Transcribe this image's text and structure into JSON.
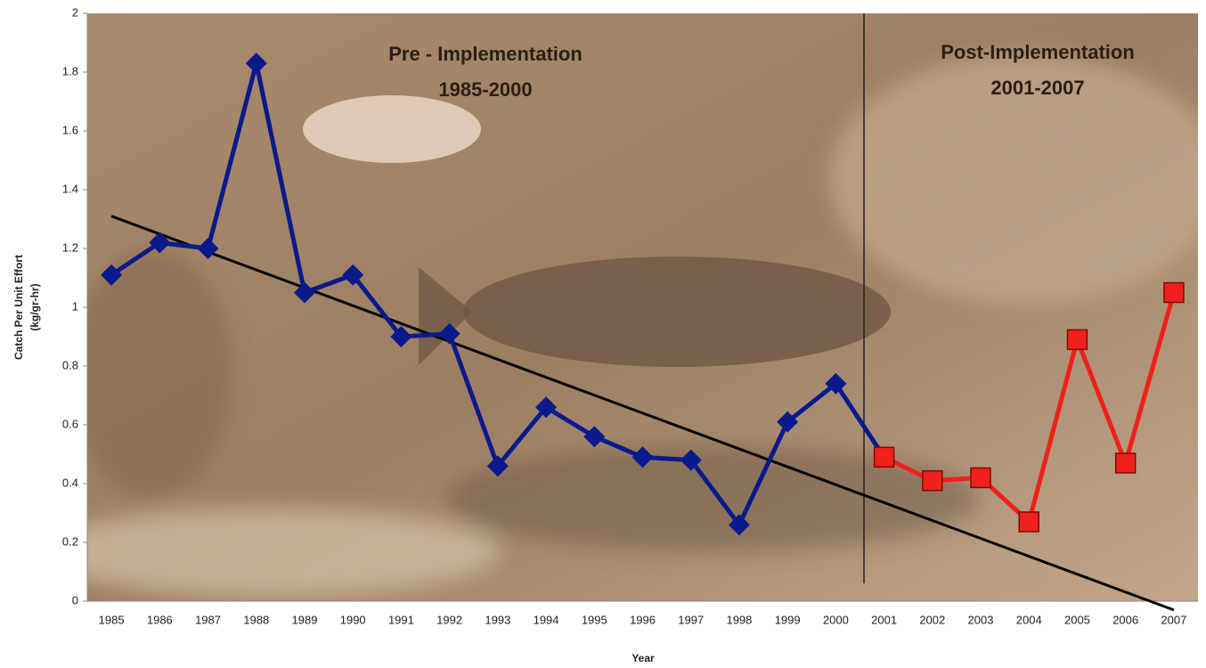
{
  "chart_data": {
    "type": "line",
    "annotations": [
      {
        "lines": [
          "Pre - Implementation",
          "1985-2000"
        ]
      },
      {
        "lines": [
          "Post-Implementation",
          "2001-2007"
        ]
      }
    ],
    "x_label": "Year",
    "y_label": [
      "Catch Per Unit Effort",
      "(kg/gr-hr)"
    ],
    "categories": [
      "1985",
      "1986",
      "1987",
      "1988",
      "1989",
      "1990",
      "1991",
      "1992",
      "1993",
      "1994",
      "1995",
      "1996",
      "1997",
      "1998",
      "1999",
      "2000",
      "2001",
      "2002",
      "2003",
      "2004",
      "2005",
      "2006",
      "2007"
    ],
    "series": [
      {
        "color": "#0a1a8c",
        "marker": "diamond",
        "values": [
          1.11,
          1.22,
          1.2,
          1.83,
          1.05,
          1.11,
          0.9,
          0.91,
          0.46,
          0.66,
          0.56,
          0.49,
          0.48,
          0.26,
          0.61,
          0.74,
          0.49,
          null,
          null,
          null,
          null,
          null,
          null
        ]
      },
      {
        "color": "#f0201a",
        "marker": "square",
        "values": [
          null,
          null,
          null,
          null,
          null,
          null,
          null,
          null,
          null,
          null,
          null,
          null,
          null,
          null,
          null,
          null,
          0.49,
          0.41,
          0.42,
          0.27,
          0.89,
          0.47,
          1.05
        ]
      }
    ],
    "trend": {
      "color": "#000000",
      "values": [
        1.31,
        -0.03
      ]
    },
    "ylim": [
      0,
      2
    ],
    "yticks": [
      0,
      0.2,
      0.4,
      0.6,
      0.8,
      1,
      1.2,
      1.4,
      1.6,
      1.8,
      2
    ]
  }
}
